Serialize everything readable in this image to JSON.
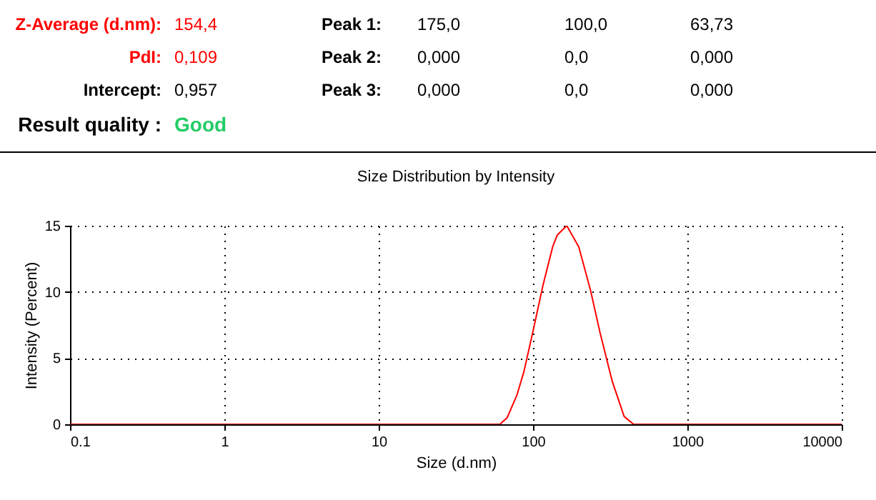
{
  "chart_data": {
    "type": "line",
    "title": "Size Distribution by Intensity",
    "xlabel": "Size (d.nm)",
    "ylabel": "Intensity (Percent)",
    "annotations": [
      "Z-Average (d.nm):",
      "154,4",
      "Peak 1:",
      "175,0",
      "100,0",
      "63,73",
      "PdI:",
      "0,109",
      "Peak 2:",
      "0,000",
      "0,0",
      "0,000",
      "Intercept:",
      "0,957",
      "Peak 3:",
      "0,000",
      "0,0",
      "0,000",
      "Result quality :",
      "Good"
    ],
    "x": [
      0.1,
      61,
      68,
      78.6,
      87.4,
      100.7,
      116,
      134,
      143.6,
      165.5,
      198,
      236,
      272,
      325,
      389,
      448,
      10000
    ],
    "series": [
      {
        "color": "#ff0000",
        "values": [
          0,
          0,
          0.5,
          2.2,
          4.0,
          7.2,
          10.5,
          13.4,
          14.3,
          15.0,
          13.4,
          10.1,
          6.9,
          3.3,
          0.6,
          0,
          0
        ]
      }
    ],
    "log": "x",
    "xlim": [
      0.1,
      10000
    ],
    "xticks": [
      0.1,
      1,
      10,
      100,
      1000,
      10000
    ],
    "ylim": [
      0,
      15
    ],
    "yticks": [
      0,
      5,
      10,
      15
    ],
    "grid": true,
    "marker": "none",
    "line_style": "solid"
  }
}
